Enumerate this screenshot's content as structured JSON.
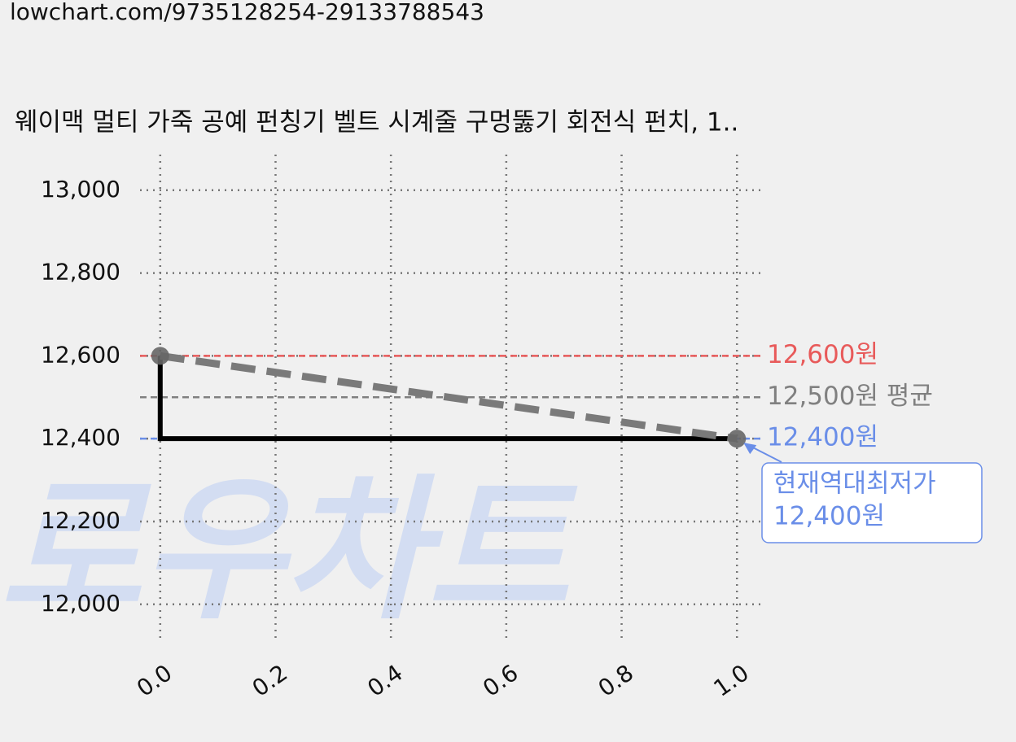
{
  "chart_data": {
    "type": "line",
    "source_url": "lowchart.com/9735128254-29133788543",
    "title": "웨이맥 멀티 가죽 공예 펀칭기 벨트 시계줄 구멍뚫기 회전식 펀치, 1..",
    "watermark": "로우차트",
    "xlim": [
      -0.035,
      1.042
    ],
    "ylim": [
      11917,
      13086
    ],
    "xticks": [
      {
        "value": 0,
        "label": "0.0"
      },
      {
        "value": 0.2,
        "label": "0.2"
      },
      {
        "value": 0.4,
        "label": "0.4"
      },
      {
        "value": 0.6,
        "label": "0.6"
      },
      {
        "value": 0.8,
        "label": "0.8"
      },
      {
        "value": 1,
        "label": "1.0"
      }
    ],
    "yticks": [
      {
        "value": 12000,
        "label": "12,000"
      },
      {
        "value": 12200,
        "label": "12,200"
      },
      {
        "value": 12400,
        "label": "12,400"
      },
      {
        "value": 12600,
        "label": "12,600"
      },
      {
        "value": 12800,
        "label": "12,800"
      },
      {
        "value": 13000,
        "label": "13,000"
      }
    ],
    "grid": true,
    "series": [
      {
        "x": [
          0,
          0,
          1
        ],
        "values": [
          12600,
          12400,
          12400
        ],
        "color": "#000000",
        "dash": false
      },
      {
        "x": [
          0,
          1
        ],
        "values": [
          12600,
          12400
        ],
        "color": "#7a7a7a",
        "dash": true,
        "markers": true
      }
    ],
    "hlines": [
      {
        "value": 12600,
        "label": "12,600원",
        "color": "#e85a5a"
      },
      {
        "value": 12500,
        "label": "12,500원 평균",
        "color": "#808080"
      },
      {
        "value": 12400,
        "label": "12,400원",
        "color": "#6a8ee8"
      }
    ],
    "annotation": {
      "x": 1,
      "y": 12400,
      "lines": [
        "현재역대최저가",
        "12,400원"
      ],
      "color": "#6a8ee8"
    }
  }
}
